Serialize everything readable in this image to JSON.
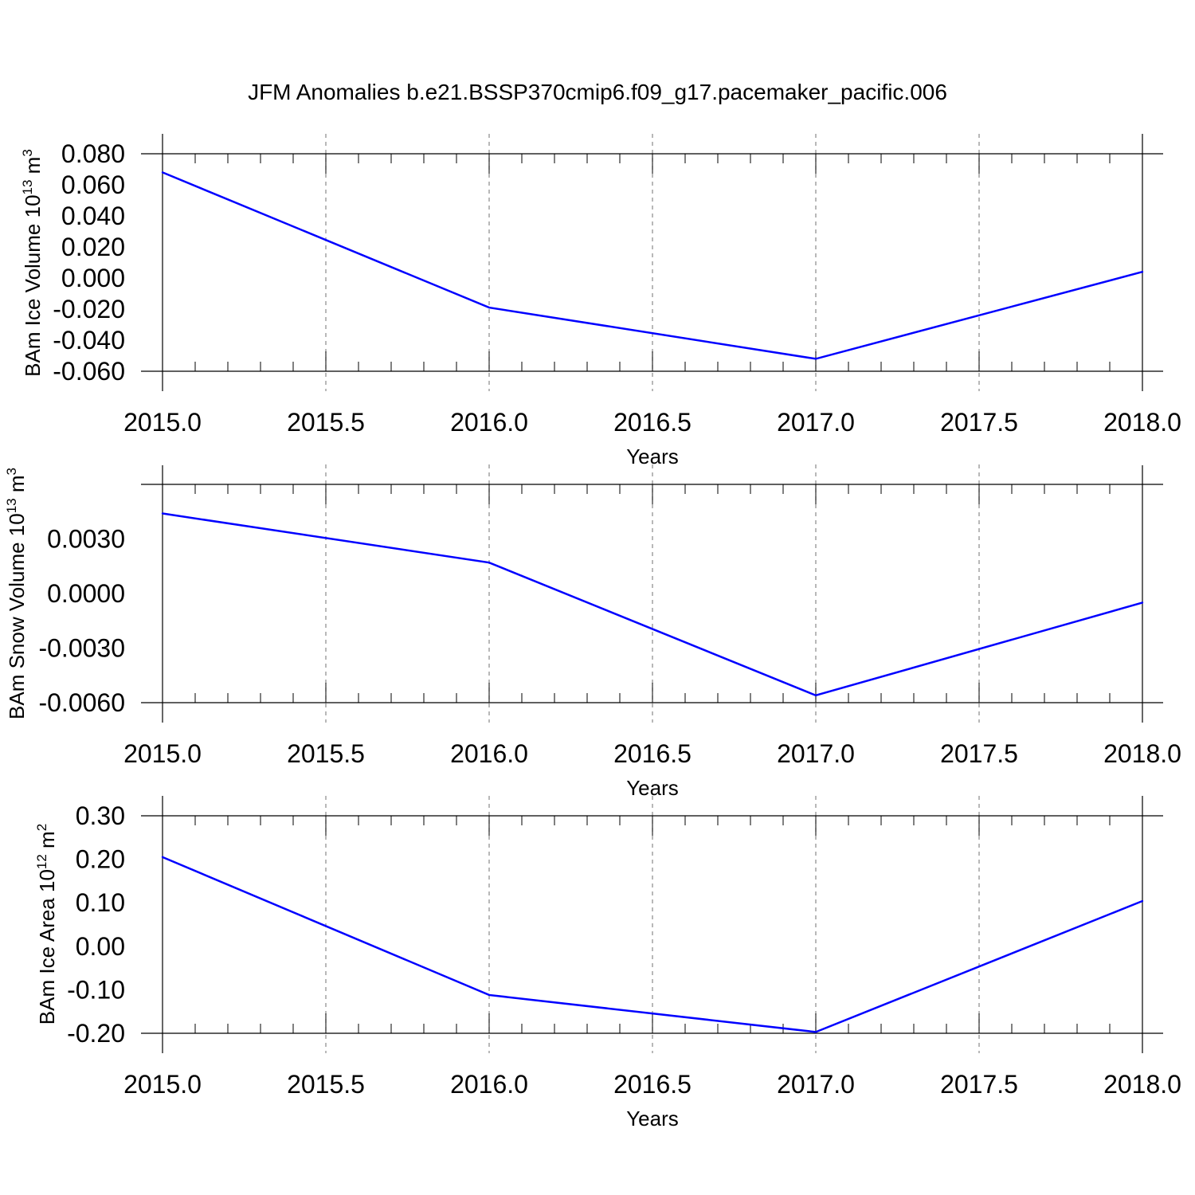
{
  "title": "JFM Anomalies b.e21.BSSP370cmip6.f09_g17.pacemaker_pacific.006",
  "chart_data": [
    {
      "type": "line",
      "ylabel": "BAm Ice Volume 10",
      "ylabel_exp": "13",
      "ylabel_unit": " m",
      "ylabel_unit_exp": "3",
      "xlabel": "Years",
      "xlim": [
        2015.0,
        2018.0
      ],
      "ylim": [
        -0.06,
        0.08
      ],
      "xticks": [
        "2015.0",
        "2015.5",
        "2016.0",
        "2016.5",
        "2017.0",
        "2017.5",
        "2018.0"
      ],
      "yticks": [
        "0.080",
        "0.060",
        "0.040",
        "0.020",
        "0.000",
        "-0.020",
        "-0.040",
        "-0.060"
      ],
      "ytick_values": [
        0.08,
        0.06,
        0.04,
        0.02,
        0.0,
        -0.02,
        -0.04,
        -0.06
      ],
      "x": [
        2015,
        2016,
        2017,
        2018
      ],
      "series": [
        {
          "values": [
            0.068,
            -0.019,
            -0.052,
            0.004
          ],
          "color": "#0000ff"
        }
      ],
      "grid": "dashed vertical at major x ticks"
    },
    {
      "type": "line",
      "ylabel": "BAm Snow Volume 10",
      "ylabel_exp": "13",
      "ylabel_unit": " m",
      "ylabel_unit_exp": "3",
      "xlabel": "Years",
      "xlim": [
        2015.0,
        2018.0
      ],
      "ylim": [
        -0.006,
        0.006
      ],
      "xticks": [
        "2015.0",
        "2015.5",
        "2016.0",
        "2016.5",
        "2017.0",
        "2017.5",
        "2018.0"
      ],
      "yticks": [
        "0.0030",
        "0.0000",
        "-0.0030",
        "-0.0060"
      ],
      "ytick_values": [
        0.003,
        0.0,
        -0.003,
        -0.006
      ],
      "x": [
        2015,
        2016,
        2017,
        2018
      ],
      "series": [
        {
          "values": [
            0.0044,
            0.0017,
            -0.0056,
            -0.0005
          ],
          "color": "#0000ff"
        }
      ],
      "grid": "dashed vertical at major x ticks"
    },
    {
      "type": "line",
      "ylabel": "BAm Ice Area 10",
      "ylabel_exp": "12",
      "ylabel_unit": " m",
      "ylabel_unit_exp": "2",
      "xlabel": "Years",
      "xlim": [
        2015.0,
        2018.0
      ],
      "ylim": [
        -0.2,
        0.3
      ],
      "xticks": [
        "2015.0",
        "2015.5",
        "2016.0",
        "2016.5",
        "2017.0",
        "2017.5",
        "2018.0"
      ],
      "yticks": [
        "0.30",
        "0.20",
        "0.10",
        "0.00",
        "-0.10",
        "-0.20"
      ],
      "ytick_values": [
        0.3,
        0.2,
        0.1,
        0.0,
        -0.1,
        -0.2
      ],
      "x": [
        2015,
        2016,
        2017,
        2018
      ],
      "series": [
        {
          "values": [
            0.205,
            -0.112,
            -0.197,
            0.104
          ],
          "color": "#0000ff"
        }
      ],
      "grid": "dashed vertical at major x ticks"
    }
  ]
}
